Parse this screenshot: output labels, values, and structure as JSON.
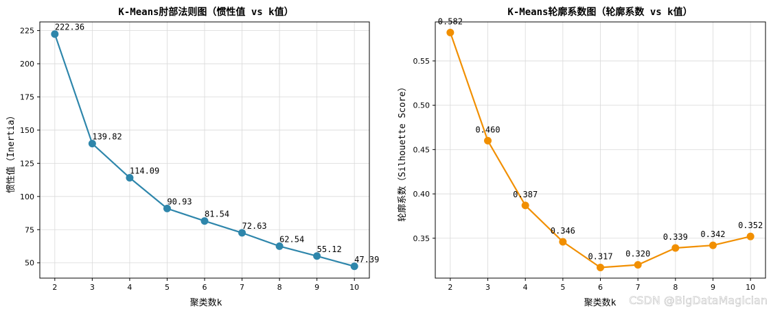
{
  "chart_data": [
    {
      "type": "line",
      "title": "K-Means肘部法则图（惯性值 vs k值）",
      "xlabel": "聚类数k",
      "ylabel": "惯性值（Inertia）",
      "x": [
        2,
        3,
        4,
        5,
        6,
        7,
        8,
        9,
        10
      ],
      "y": [
        222.36,
        139.82,
        114.09,
        90.93,
        81.54,
        72.63,
        62.54,
        55.12,
        47.39
      ],
      "point_labels": [
        "222.36",
        "139.82",
        "114.09",
        "90.93",
        "81.54",
        "72.63",
        "62.54",
        "55.12",
        "47.39"
      ],
      "xlim": [
        1.6,
        10.4
      ],
      "ylim": [
        38.5,
        231.5
      ],
      "yticks": [
        50,
        75,
        100,
        125,
        150,
        175,
        200,
        225
      ],
      "xticks": [
        2,
        3,
        4,
        5,
        6,
        7,
        8,
        9,
        10
      ],
      "grid": true,
      "color": "#2e86ab"
    },
    {
      "type": "line",
      "title": "K-Means轮廓系数图（轮廓系数 vs k值）",
      "xlabel": "聚类数k",
      "ylabel": "轮廓系数（Silhouette Score）",
      "x": [
        2,
        3,
        4,
        5,
        6,
        7,
        8,
        9,
        10
      ],
      "y": [
        0.582,
        0.46,
        0.387,
        0.346,
        0.317,
        0.32,
        0.339,
        0.342,
        0.352
      ],
      "point_labels": [
        "0.582",
        "0.460",
        "0.387",
        "0.346",
        "0.317",
        "0.320",
        "0.339",
        "0.342",
        "0.352"
      ],
      "xlim": [
        1.6,
        10.4
      ],
      "ylim": [
        0.305,
        0.594
      ],
      "yticks": [
        0.35,
        0.4,
        0.45,
        0.5,
        0.55
      ],
      "ytick_labels": [
        "0.35",
        "0.40",
        "0.45",
        "0.50",
        "0.55"
      ],
      "xticks": [
        2,
        3,
        4,
        5,
        6,
        7,
        8,
        9,
        10
      ],
      "grid": true,
      "color": "#f18f01"
    }
  ],
  "watermark": "CSDN @BigDataMagician"
}
